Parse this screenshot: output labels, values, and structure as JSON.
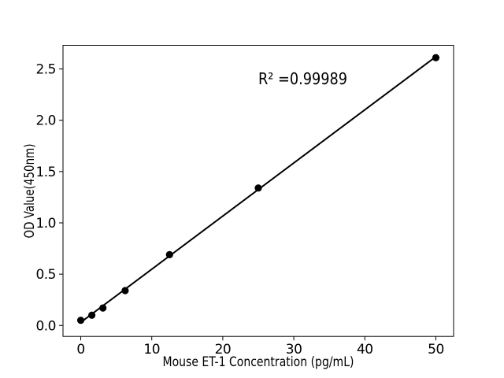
{
  "chart_data": {
    "type": "scatter",
    "title": "",
    "xlabel": "Mouse ET-1 Concentration (pg/mL)",
    "ylabel": "OD Value(450nm)",
    "annotation": "R² =0.99989",
    "x": [
      0,
      1.56,
      3.12,
      6.25,
      12.5,
      25,
      50
    ],
    "y": [
      0.05,
      0.1,
      0.17,
      0.34,
      0.69,
      1.34,
      2.61
    ],
    "fit_line": {
      "x": [
        0,
        50
      ],
      "y": [
        0.03,
        2.62
      ]
    },
    "xticks": [
      "0",
      "10",
      "20",
      "30",
      "40",
      "50"
    ],
    "yticks": [
      "0.0",
      "0.5",
      "1.0",
      "1.5",
      "2.0",
      "2.5"
    ],
    "xlim": [
      -2.5,
      52.5
    ],
    "ylim": [
      -0.107,
      2.731
    ],
    "grid": false,
    "legend": false,
    "marker_color": "#000000",
    "line_color": "#000000",
    "background_color": "#ffffff"
  }
}
